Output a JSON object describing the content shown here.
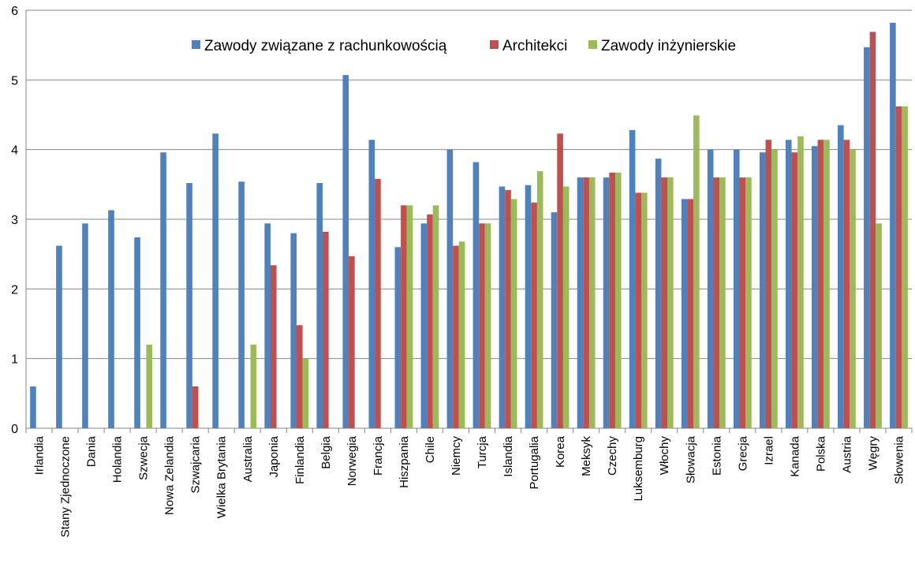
{
  "chart_data": {
    "type": "bar",
    "title": "",
    "xlabel": "",
    "ylabel": "",
    "ylim": [
      0,
      6
    ],
    "yticks": [
      0,
      1,
      2,
      3,
      4,
      5,
      6
    ],
    "grid": true,
    "legend_position": "top-center",
    "categories": [
      "Irlandia",
      "Stany Zjednoczone",
      "Dania",
      "Holandia",
      "Szwecja",
      "Nowa Zelandia",
      "Szwajcaria",
      "Wielka Brytania",
      "Australia",
      "Japonia",
      "Finlandia",
      "Belgia",
      "Norwegia",
      "Francja",
      "Hiszpania",
      "Chile",
      "Niemcy",
      "Turcja",
      "Islandia",
      "Portugalia",
      "Korea",
      "Meksyk",
      "Czechy",
      "Luksemburg",
      "Włochy",
      "Słowacja",
      "Estonia",
      "Grecja",
      "Izrael",
      "Kanada",
      "Polska",
      "Austria",
      "Węgry",
      "Słowenia"
    ],
    "series": [
      {
        "name": "Zawody związane z rachunkowością",
        "color": "#4F81BD",
        "values": [
          0.6,
          2.62,
          2.94,
          3.13,
          2.74,
          3.96,
          3.52,
          4.23,
          3.54,
          2.94,
          2.8,
          3.52,
          5.07,
          4.14,
          2.6,
          2.94,
          4.0,
          3.82,
          3.47,
          3.49,
          3.1,
          3.6,
          3.6,
          4.28,
          3.87,
          3.29,
          4.0,
          4.0,
          3.96,
          4.14,
          4.05,
          4.35,
          5.47,
          5.82
        ]
      },
      {
        "name": "Architekci",
        "color": "#C0504D",
        "values": [
          null,
          null,
          null,
          null,
          null,
          null,
          0.6,
          null,
          null,
          2.34,
          1.48,
          2.82,
          2.47,
          3.58,
          3.2,
          3.07,
          2.62,
          2.94,
          3.42,
          3.24,
          4.23,
          3.6,
          3.67,
          3.38,
          3.6,
          3.29,
          3.6,
          3.6,
          4.14,
          3.96,
          4.14,
          4.14,
          5.69,
          4.62
        ]
      },
      {
        "name": "Zawody inżynierskie",
        "color": "#9BBB59",
        "values": [
          null,
          null,
          null,
          null,
          1.2,
          null,
          null,
          null,
          1.2,
          null,
          1.0,
          null,
          null,
          null,
          3.2,
          3.2,
          2.68,
          2.94,
          3.29,
          3.69,
          3.47,
          3.6,
          3.67,
          3.38,
          3.6,
          4.49,
          3.6,
          3.6,
          4.0,
          4.19,
          4.14,
          4.0,
          2.94,
          4.62
        ]
      }
    ]
  }
}
